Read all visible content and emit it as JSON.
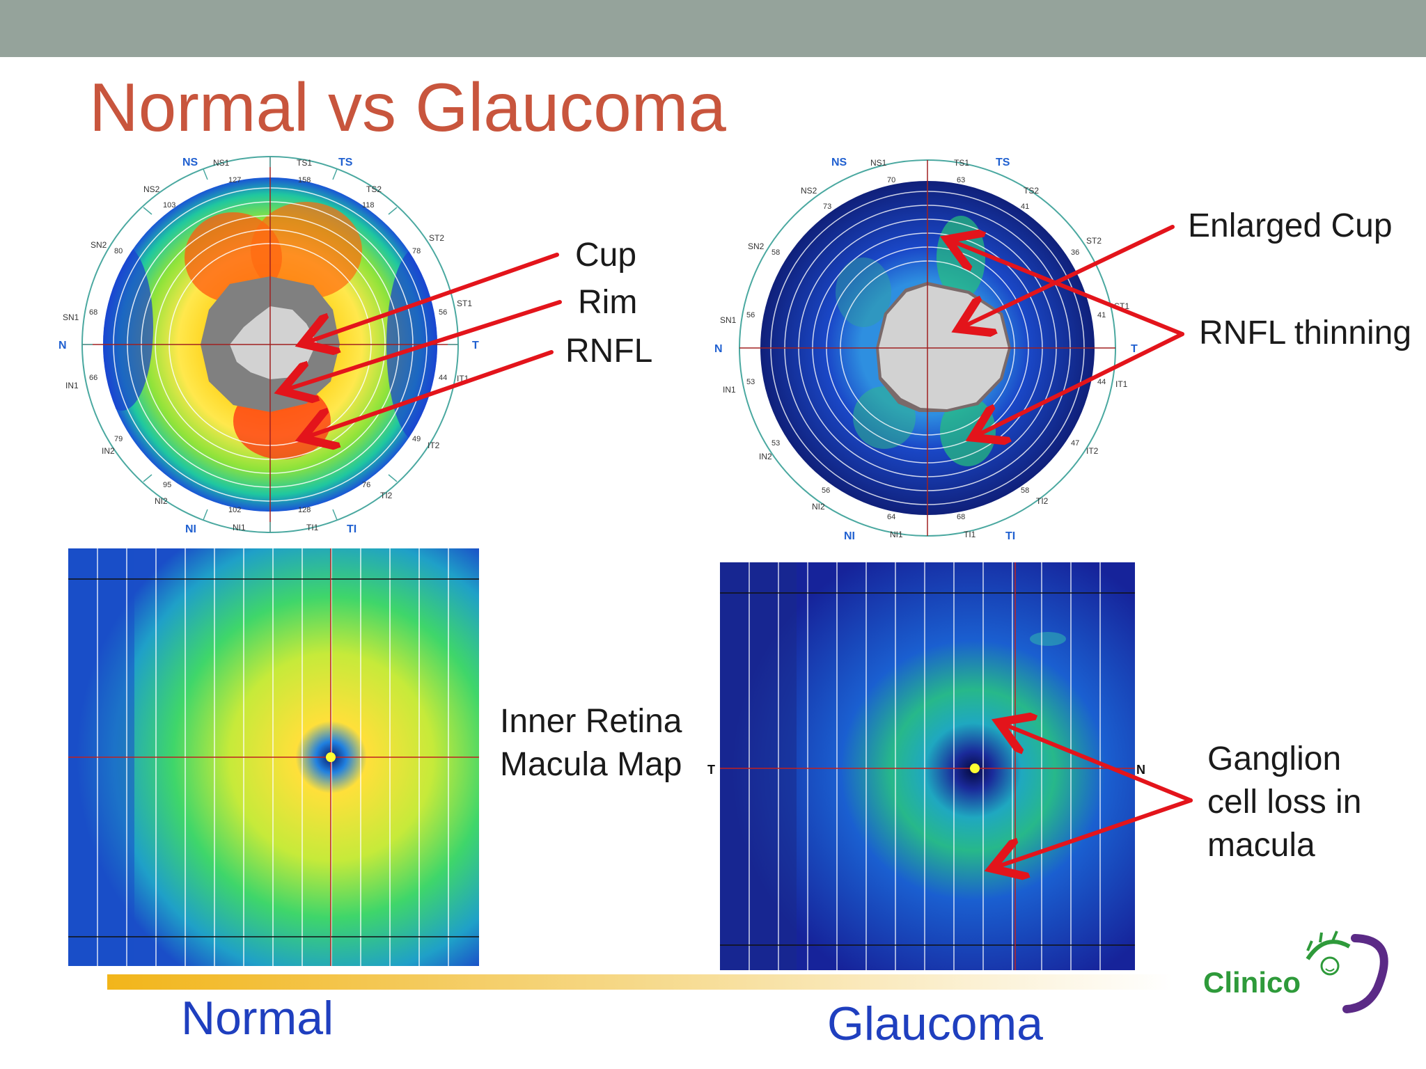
{
  "slide": {
    "title": "Normal vs Glaucoma"
  },
  "disc_sector_labels": {
    "cardinal": [
      "NS",
      "TS",
      "N",
      "T",
      "NI",
      "TI"
    ],
    "sectors": [
      "NS1",
      "TS1",
      "NS2",
      "TS2",
      "ST2",
      "SN2",
      "SN1",
      "ST1",
      "IN1",
      "IT1",
      "IN2",
      "IT2",
      "NI2",
      "TI2",
      "NI1",
      "TI1"
    ]
  },
  "normal_disc": {
    "values": {
      "NS1": "127",
      "TS1": "158",
      "NS2": "103",
      "TS2": "118",
      "ST2": "78",
      "SN2": "80",
      "SN1": "68",
      "ST1": "56",
      "IN1": "66",
      "IT1": "44",
      "IN2": "79",
      "IT2": "49",
      "NI2": "95",
      "TI2": "76",
      "NI1": "102",
      "TI1": "128"
    }
  },
  "glaucoma_disc": {
    "values": {
      "NS1": "70",
      "TS1": "63",
      "NS2": "73",
      "TS2": "41",
      "ST2": "36",
      "SN2": "58",
      "SN1": "56",
      "ST1": "41",
      "IN1": "53",
      "IT1": "44",
      "IN2": "53",
      "IT2": "47",
      "NI2": "56",
      "TI2": "58",
      "NI1": "64",
      "TI1": "68"
    }
  },
  "annotations": {
    "cup": "Cup",
    "rim": "Rim",
    "rnfl": "RNFL",
    "enlarged_cup": "Enlarged Cup",
    "rnfl_thinning": "RNFL thinning",
    "macula_map_line1": "Inner Retina",
    "macula_map_line2": "Macula Map",
    "ganglion_line1": "Ganglion",
    "ganglion_line2": "cell loss in",
    "ganglion_line3": "macula",
    "map_side_t": "T",
    "map_side_n": "N"
  },
  "captions": {
    "normal": "Normal",
    "glaucoma": "Glaucoma"
  },
  "logo": {
    "text": "Clinico"
  },
  "colors": {
    "title": "#c8553d",
    "top_bar": "#95a39b",
    "arrow": "#e3141b",
    "caption": "#1f3fbf",
    "logo_green": "#2e9a3a",
    "logo_purple": "#5b2a86"
  }
}
